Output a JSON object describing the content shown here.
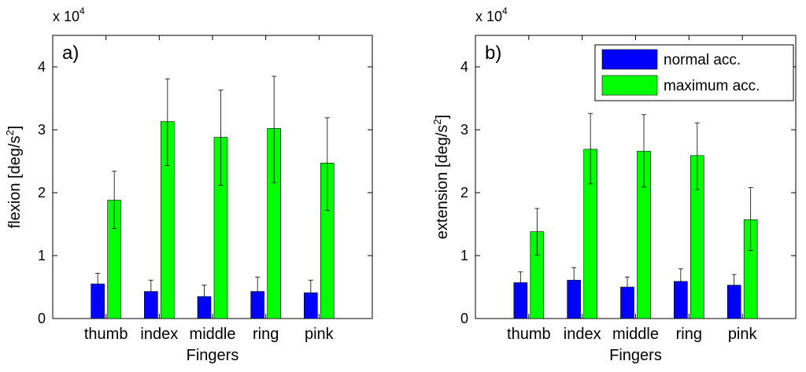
{
  "chart_data": [
    {
      "type": "bar",
      "panel_label": "a)",
      "title": "",
      "xlabel": "Fingers",
      "ylabel": "flexion [deg/s",
      "ylabel_sup": "2",
      "ylabel_close": "]",
      "multiplier_base": "x 10",
      "multiplier_exp": "4",
      "ylim": [
        0,
        4.5
      ],
      "yticks": [
        0,
        1,
        2,
        3,
        4
      ],
      "ytick_labels": [
        "0",
        "1",
        "2",
        "3",
        "4"
      ],
      "categories": [
        "thumb",
        "index",
        "middle",
        "ring",
        "pink"
      ],
      "series": [
        {
          "name": "normal acc.",
          "color": "#0000ff",
          "values": [
            0.55,
            0.43,
            0.35,
            0.43,
            0.41
          ],
          "err_upper": [
            0.72,
            0.61,
            0.53,
            0.66,
            0.61
          ],
          "err_lower": [
            0.55,
            0.43,
            0.35,
            0.43,
            0.41
          ]
        },
        {
          "name": "maximum acc.",
          "color": "#00ff00",
          "values": [
            1.88,
            3.13,
            2.88,
            3.02,
            2.47
          ],
          "err_upper": [
            2.34,
            3.81,
            3.63,
            3.85,
            3.19
          ],
          "err_lower": [
            1.43,
            2.43,
            2.12,
            2.16,
            1.72
          ]
        }
      ],
      "legend": false
    },
    {
      "type": "bar",
      "panel_label": "b)",
      "title": "",
      "xlabel": "Fingers",
      "ylabel": "extension [deg/s",
      "ylabel_sup": "2",
      "ylabel_close": "]",
      "multiplier_base": "x 10",
      "multiplier_exp": "4",
      "ylim": [
        0,
        4.5
      ],
      "yticks": [
        0,
        1,
        2,
        3,
        4
      ],
      "ytick_labels": [
        "0",
        "1",
        "2",
        "3",
        "4"
      ],
      "categories": [
        "thumb",
        "index",
        "middle",
        "ring",
        "pink"
      ],
      "series": [
        {
          "name": "normal acc.",
          "color": "#0000ff",
          "values": [
            0.57,
            0.61,
            0.5,
            0.59,
            0.53
          ],
          "err_upper": [
            0.74,
            0.81,
            0.66,
            0.79,
            0.7
          ],
          "err_lower": [
            0.57,
            0.61,
            0.5,
            0.59,
            0.53
          ]
        },
        {
          "name": "maximum acc.",
          "color": "#00ff00",
          "values": [
            1.38,
            2.69,
            2.66,
            2.59,
            1.57
          ],
          "err_upper": [
            1.75,
            3.26,
            3.24,
            3.11,
            2.08
          ],
          "err_lower": [
            1.01,
            2.14,
            2.09,
            2.05,
            1.08
          ]
        }
      ],
      "legend": true,
      "legend_position": "top-right"
    }
  ]
}
